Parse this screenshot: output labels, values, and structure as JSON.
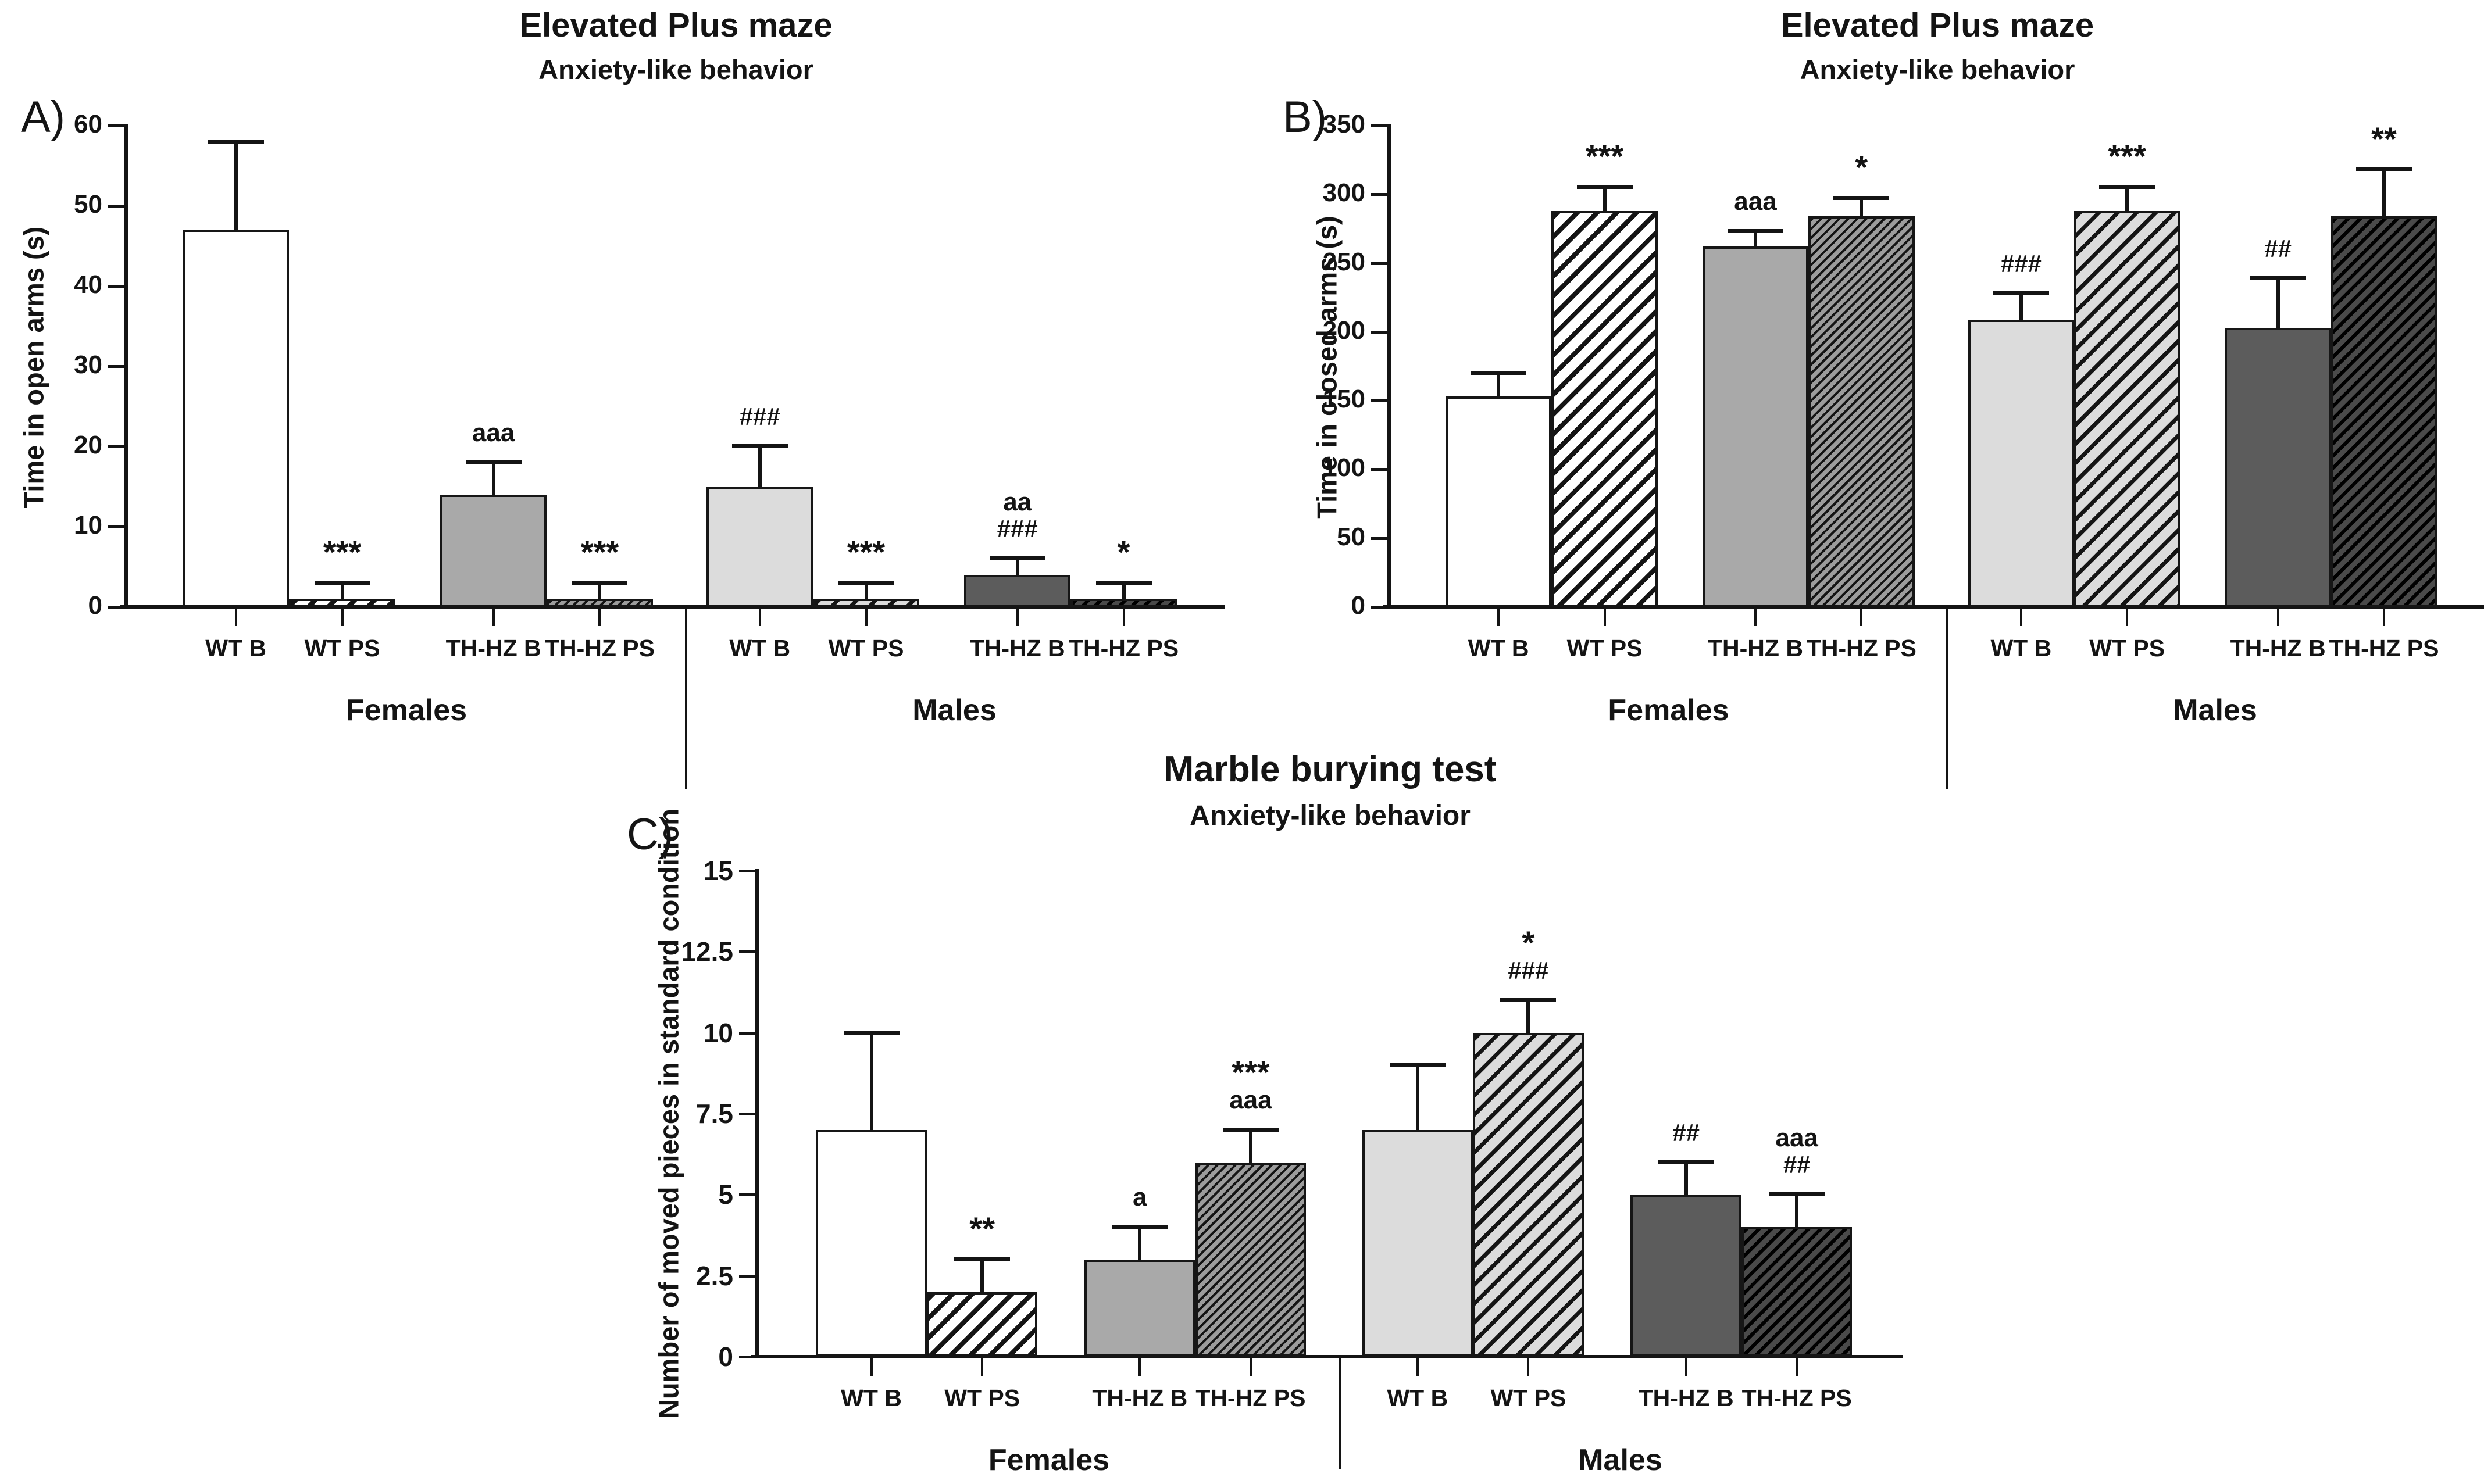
{
  "figure": {
    "background": "#ffffff",
    "ink": "#141414"
  },
  "colors": {
    "ink": "#141414",
    "bar_white": "#ffffff",
    "bar_gray": "#a9a9a9",
    "bar_lightgray": "#dcdcdc",
    "bar_darkgray": "#5c5c5c",
    "hatch_gray_bg": "#9c9c9c",
    "hatch_dark_bg": "#4a4a4a"
  },
  "chart_data": [
    {
      "type": "bar",
      "panel": "A)",
      "title": "Elevated Plus maze",
      "subtitle": "Anxiety-like behavior",
      "ylabel": "Time in open arms (s)",
      "ylim": [
        0,
        60
      ],
      "yticks": [
        0,
        10,
        20,
        30,
        40,
        50,
        60
      ],
      "grid": false,
      "legend": "none",
      "groups": [
        {
          "name": "Females",
          "bars": [
            {
              "label": "WT B",
              "value": 47,
              "err_top": 58,
              "pattern": "white",
              "annotations": []
            },
            {
              "label": "WT PS",
              "value": 1,
              "err_top": 3,
              "pattern": "white-hatch",
              "annotations": [
                "***"
              ]
            },
            {
              "label": "TH-HZ B",
              "value": 14,
              "err_top": 18,
              "pattern": "gray",
              "annotations": [
                "aaa"
              ]
            },
            {
              "label": "TH-HZ PS",
              "value": 1,
              "err_top": 3,
              "pattern": "gray-hatch",
              "annotations": [
                "***"
              ]
            }
          ]
        },
        {
          "name": "Males",
          "bars": [
            {
              "label": "WT B",
              "value": 15,
              "err_top": 20,
              "pattern": "lightgray",
              "annotations": [
                "###"
              ]
            },
            {
              "label": "WT PS",
              "value": 1,
              "err_top": 3,
              "pattern": "lightgray-hatch",
              "annotations": [
                "***"
              ]
            },
            {
              "label": "TH-HZ B",
              "value": 4,
              "err_top": 6,
              "pattern": "darkgray",
              "annotations": [
                "aa",
                "###"
              ]
            },
            {
              "label": "TH-HZ PS",
              "value": 1,
              "err_top": 3,
              "pattern": "dark-hatch",
              "annotations": [
                "*"
              ]
            }
          ]
        }
      ]
    },
    {
      "type": "bar",
      "panel": "B)",
      "title": "Elevated Plus maze",
      "subtitle": "Anxiety-like behavior",
      "ylabel": "Time in closed arms (s)",
      "ylim": [
        0,
        350
      ],
      "yticks": [
        0,
        50,
        100,
        150,
        200,
        250,
        300,
        350
      ],
      "grid": false,
      "legend": "none",
      "groups": [
        {
          "name": "Females",
          "bars": [
            {
              "label": "WT B",
              "value": 153,
              "err_top": 170,
              "pattern": "white",
              "annotations": []
            },
            {
              "label": "WT PS",
              "value": 288,
              "err_top": 305,
              "pattern": "white-hatch",
              "annotations": [
                "***"
              ]
            },
            {
              "label": "TH-HZ B",
              "value": 262,
              "err_top": 273,
              "pattern": "gray",
              "annotations": [
                "aaa"
              ]
            },
            {
              "label": "TH-HZ PS",
              "value": 284,
              "err_top": 297,
              "pattern": "gray-hatch",
              "annotations": [
                "*"
              ]
            }
          ]
        },
        {
          "name": "Males",
          "bars": [
            {
              "label": "WT B",
              "value": 209,
              "err_top": 228,
              "pattern": "lightgray",
              "annotations": [
                "###"
              ]
            },
            {
              "label": "WT PS",
              "value": 288,
              "err_top": 305,
              "pattern": "lightgray-hatch",
              "annotations": [
                "***"
              ]
            },
            {
              "label": "TH-HZ B",
              "value": 203,
              "err_top": 239,
              "pattern": "darkgray",
              "annotations": [
                "##"
              ]
            },
            {
              "label": "TH-HZ PS",
              "value": 284,
              "err_top": 318,
              "pattern": "dark-hatch",
              "annotations": [
                "**"
              ]
            }
          ]
        }
      ]
    },
    {
      "type": "bar",
      "panel": "C)",
      "title": "Marble burying test",
      "subtitle": "Anxiety-like behavior",
      "ylabel": "Number of moved pieces in standard condition",
      "ylim": [
        0,
        15
      ],
      "yticks": [
        0,
        2.5,
        5,
        7.5,
        10,
        12.5,
        15
      ],
      "grid": false,
      "legend": "none",
      "groups": [
        {
          "name": "Females",
          "bars": [
            {
              "label": "WT B",
              "value": 7,
              "err_top": 10,
              "pattern": "white",
              "annotations": []
            },
            {
              "label": "WT PS",
              "value": 2,
              "err_top": 3,
              "pattern": "white-hatch",
              "annotations": [
                "**"
              ]
            },
            {
              "label": "TH-HZ B",
              "value": 3,
              "err_top": 4,
              "pattern": "gray",
              "annotations": [
                "a"
              ]
            },
            {
              "label": "TH-HZ PS",
              "value": 6,
              "err_top": 7,
              "pattern": "gray-hatch",
              "annotations": [
                "***",
                "aaa"
              ]
            }
          ]
        },
        {
          "name": "Males",
          "bars": [
            {
              "label": "WT B",
              "value": 7,
              "err_top": 9,
              "pattern": "lightgray",
              "annotations": []
            },
            {
              "label": "WT PS",
              "value": 10,
              "err_top": 11,
              "pattern": "lightgray-hatch",
              "annotations": [
                "*",
                "###"
              ]
            },
            {
              "label": "TH-HZ B",
              "value": 5,
              "err_top": 6,
              "pattern": "darkgray",
              "annotations": [
                "##"
              ]
            },
            {
              "label": "TH-HZ PS",
              "value": 4,
              "err_top": 5,
              "pattern": "dark-hatch",
              "annotations": [
                "aaa",
                "##"
              ]
            }
          ]
        }
      ]
    }
  ]
}
